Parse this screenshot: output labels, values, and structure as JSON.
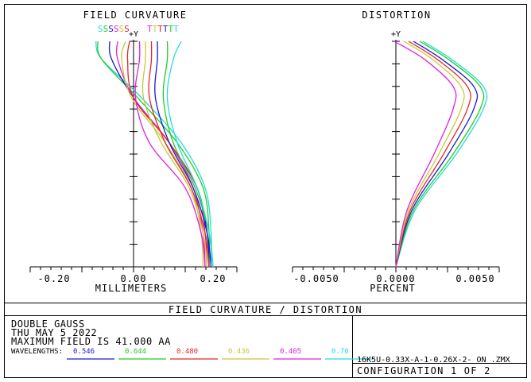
{
  "header": {
    "title": "FIELD CURVATURE / DISTORTION",
    "lens_name": "DOUBLE GAUSS",
    "date": "THU MAY 5 2022",
    "max_field": "MAXIMUM FIELD IS 41.000  AA",
    "wavelengths_label": "WAVELENGTHS:",
    "file_name": "16K5U-0.33X-A-1-0.26X-2- ON   .ZMX",
    "configuration": "CONFIGURATION 1 OF 2"
  },
  "wavelengths": [
    {
      "value": "0.546",
      "color": "#1a1ad0"
    },
    {
      "value": "0.644",
      "color": "#22cc22"
    },
    {
      "value": "0.480",
      "color": "#e02a2a"
    },
    {
      "value": "0.436",
      "color": "#c8c83a"
    },
    {
      "value": "0.405",
      "color": "#e020e0"
    },
    {
      "value": "0.70",
      "color": "#20dcdc"
    }
  ],
  "chart_data": [
    {
      "type": "line",
      "title": "FIELD CURVATURE",
      "xlabel": "MILLIMETERS",
      "ylabel": "+Y",
      "x_ticks": [
        "-0.20",
        "0.00",
        "0.20"
      ],
      "xlim": [
        -0.26,
        0.26
      ],
      "ylim": [
        0,
        1
      ],
      "legend": {
        "s_labels": [
          {
            "text": "S",
            "color": "#20dcdc"
          },
          {
            "text": "S",
            "color": "#22cc22"
          },
          {
            "text": "S",
            "color": "#1a1ad0"
          },
          {
            "text": "S",
            "color": "#e020e0"
          },
          {
            "text": "S",
            "color": "#c8c83a"
          },
          {
            "text": "S",
            "color": "#e02a2a"
          }
        ],
        "t_labels": [
          {
            "text": "T",
            "color": "#e020e0"
          },
          {
            "text": "T",
            "color": "#c8c83a"
          },
          {
            "text": "T",
            "color": "#e02a2a"
          },
          {
            "text": "T",
            "color": "#1a1ad0"
          },
          {
            "text": "T",
            "color": "#22cc22"
          },
          {
            "text": "T",
            "color": "#20dcdc"
          }
        ]
      },
      "series": [
        {
          "color": "#20dcdc",
          "x": [
            0.195,
            0.195,
            0.18,
            0.12,
            0.02,
            -0.08,
            -0.095
          ],
          "y": [
            0,
            0.15,
            0.35,
            0.55,
            0.75,
            0.92,
            1.0
          ]
        },
        {
          "color": "#22cc22",
          "x": [
            0.19,
            0.19,
            0.175,
            0.11,
            0.01,
            -0.08,
            -0.09
          ],
          "y": [
            0,
            0.15,
            0.35,
            0.55,
            0.75,
            0.92,
            1.0
          ]
        },
        {
          "color": "#1a1ad0",
          "x": [
            0.19,
            0.185,
            0.16,
            0.09,
            0.0,
            -0.055,
            -0.06
          ],
          "y": [
            0,
            0.15,
            0.35,
            0.55,
            0.75,
            0.92,
            1.0
          ]
        },
        {
          "color": "#e020e0",
          "x": [
            0.18,
            0.175,
            0.15,
            0.09,
            0.0,
            -0.04,
            -0.04
          ],
          "y": [
            0,
            0.15,
            0.35,
            0.55,
            0.75,
            0.92,
            1.0
          ]
        },
        {
          "color": "#c8c83a",
          "x": [
            0.175,
            0.17,
            0.145,
            0.08,
            -0.005,
            -0.03,
            -0.02
          ],
          "y": [
            0,
            0.15,
            0.35,
            0.55,
            0.75,
            0.92,
            1.0
          ]
        },
        {
          "color": "#e02a2a",
          "x": [
            0.185,
            0.18,
            0.16,
            0.09,
            0.0,
            -0.015,
            -0.01
          ],
          "y": [
            0,
            0.15,
            0.35,
            0.55,
            0.75,
            0.92,
            1.0
          ]
        },
        {
          "color": "#e020e0",
          "x": [
            0.18,
            0.17,
            0.13,
            0.04,
            0.005,
            0.015,
            0.015
          ],
          "y": [
            0,
            0.15,
            0.35,
            0.55,
            0.75,
            0.92,
            1.0
          ]
        },
        {
          "color": "#c8c83a",
          "x": [
            0.185,
            0.175,
            0.14,
            0.07,
            0.025,
            0.03,
            0.03
          ],
          "y": [
            0,
            0.15,
            0.35,
            0.55,
            0.75,
            0.92,
            1.0
          ]
        },
        {
          "color": "#e02a2a",
          "x": [
            0.19,
            0.18,
            0.145,
            0.08,
            0.04,
            0.045,
            0.045
          ],
          "y": [
            0,
            0.15,
            0.35,
            0.55,
            0.75,
            0.92,
            1.0
          ]
        },
        {
          "color": "#1a1ad0",
          "x": [
            0.195,
            0.185,
            0.15,
            0.09,
            0.055,
            0.06,
            0.06
          ],
          "y": [
            0,
            0.15,
            0.35,
            0.55,
            0.75,
            0.92,
            1.0
          ]
        },
        {
          "color": "#22cc22",
          "x": [
            0.2,
            0.19,
            0.155,
            0.1,
            0.075,
            0.085,
            0.085
          ],
          "y": [
            0,
            0.15,
            0.35,
            0.55,
            0.75,
            0.92,
            1.0
          ]
        },
        {
          "color": "#20dcdc",
          "x": [
            0.2,
            0.19,
            0.16,
            0.11,
            0.085,
            0.1,
            0.12
          ],
          "y": [
            0,
            0.15,
            0.35,
            0.55,
            0.75,
            0.92,
            1.0
          ]
        }
      ]
    },
    {
      "type": "line",
      "title": "DISTORTION",
      "xlabel": "PERCENT",
      "ylabel": "+Y",
      "x_ticks": [
        "-0.0050",
        "0.0000",
        "0.0050"
      ],
      "xlim": [
        -0.0065,
        0.0065
      ],
      "ylim": [
        0,
        1
      ],
      "series": [
        {
          "color": "#20dcdc",
          "x": [
            0,
            0.0012,
            0.0038,
            0.0055,
            0.0055,
            0.0035,
            0.0017
          ],
          "y": [
            0,
            0.25,
            0.5,
            0.7,
            0.8,
            0.92,
            1.0
          ]
        },
        {
          "color": "#22cc22",
          "x": [
            0,
            0.0011,
            0.0036,
            0.0053,
            0.0053,
            0.0033,
            0.0015
          ],
          "y": [
            0,
            0.25,
            0.5,
            0.7,
            0.8,
            0.92,
            1.0
          ]
        },
        {
          "color": "#1a1ad0",
          "x": [
            0,
            0.001,
            0.0033,
            0.0049,
            0.0049,
            0.0029,
            0.0011
          ],
          "y": [
            0,
            0.25,
            0.5,
            0.7,
            0.8,
            0.92,
            1.0
          ]
        },
        {
          "color": "#e02a2a",
          "x": [
            0,
            0.0009,
            0.003,
            0.0045,
            0.0045,
            0.0026,
            0.0008
          ],
          "y": [
            0,
            0.25,
            0.5,
            0.7,
            0.8,
            0.92,
            1.0
          ]
        },
        {
          "color": "#c8c83a",
          "x": [
            0,
            0.0008,
            0.0027,
            0.0041,
            0.0041,
            0.0023,
            0.0005
          ],
          "y": [
            0,
            0.25,
            0.5,
            0.7,
            0.8,
            0.92,
            1.0
          ]
        },
        {
          "color": "#e020e0",
          "x": [
            0,
            0.0007,
            0.0024,
            0.0036,
            0.0036,
            0.0018,
            -0.0001
          ],
          "y": [
            0,
            0.25,
            0.5,
            0.7,
            0.8,
            0.92,
            1.0
          ]
        }
      ]
    }
  ]
}
